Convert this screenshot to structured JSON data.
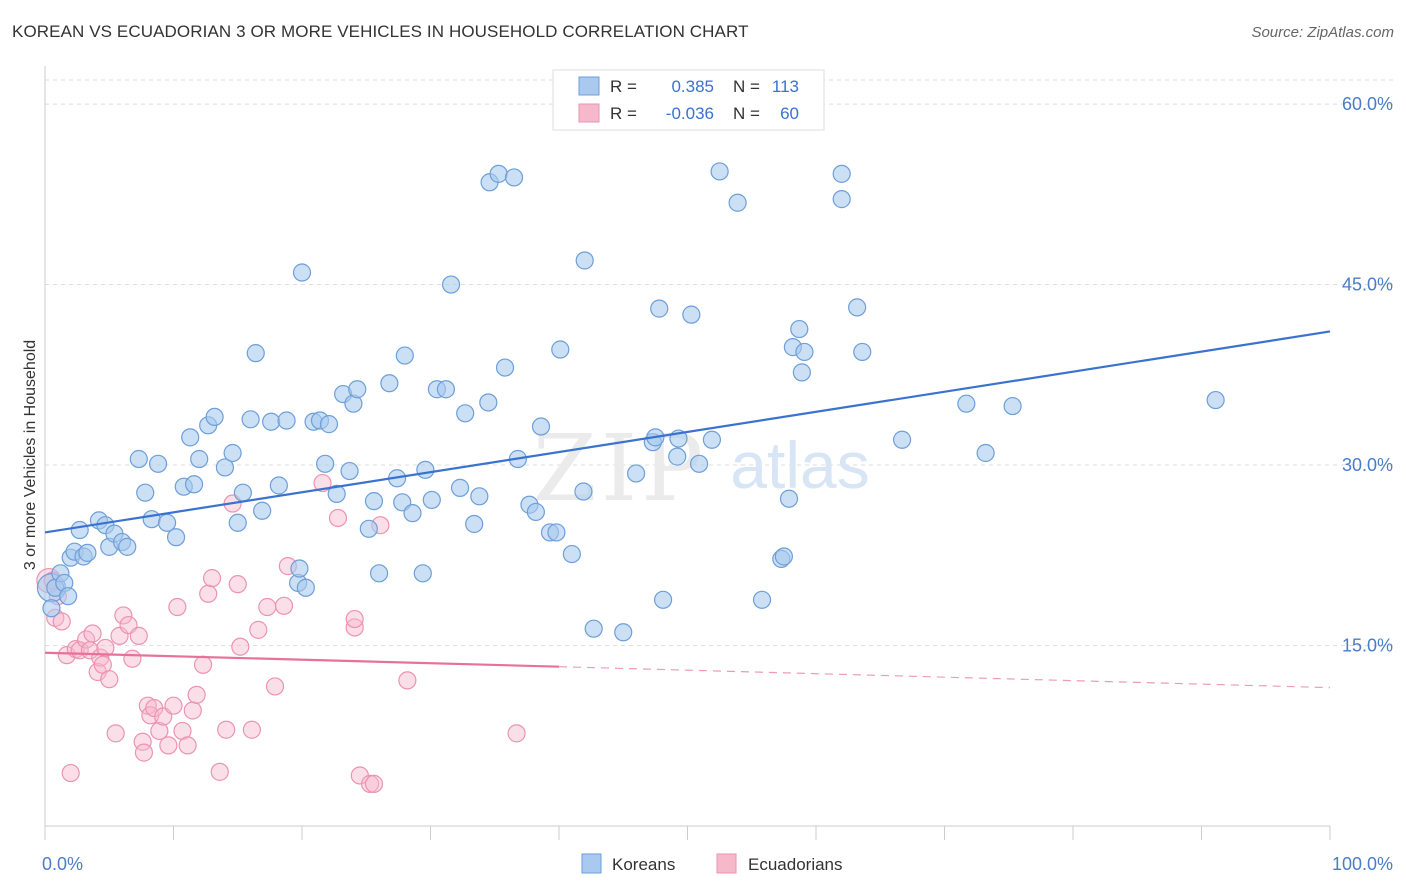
{
  "header": {
    "title": "KOREAN VS ECUADORIAN 3 OR MORE VEHICLES IN HOUSEHOLD CORRELATION CHART",
    "source": "Source: ZipAtlas.com"
  },
  "watermark": {
    "zip": "ZIP",
    "atlas": "atlas"
  },
  "colors": {
    "koreans_fill": "#a9c9ee",
    "koreans_stroke": "#6d9fd8",
    "koreans_line": "#3a72cf",
    "ecuadorians_fill": "#f6b9cb",
    "ecuadorians_stroke": "#ec93b0",
    "ecuadorians_line": "#e8719a",
    "tick_label": "#4a7cc9",
    "grid": "#dddddd"
  },
  "legend_top": {
    "rows": [
      {
        "r_label": "R =",
        "r_value": "0.385",
        "n_label": "N =",
        "n_value": "113"
      },
      {
        "r_label": "R =",
        "r_value": "-0.036",
        "n_label": "N =",
        "n_value": "60"
      }
    ]
  },
  "chart_data": {
    "type": "scatter",
    "title": "KOREAN VS ECUADORIAN 3 OR MORE VEHICLES IN HOUSEHOLD CORRELATION CHART",
    "xlabel": "",
    "ylabel": "3 or more Vehicles in Household",
    "xlim": [
      0,
      100
    ],
    "ylim": [
      0,
      60
    ],
    "x_ticks": [
      "0.0%",
      "100.0%"
    ],
    "y_ticks": [
      {
        "value": 15,
        "label": "15.0%"
      },
      {
        "value": 30,
        "label": "30.0%"
      },
      {
        "value": 45,
        "label": "45.0%"
      },
      {
        "value": 60,
        "label": "60.0%"
      }
    ],
    "grid": true,
    "legend_position": "bottom-center",
    "series": [
      {
        "name": "Koreans",
        "r": 0.385,
        "n": 113,
        "trend": {
          "x0": 0,
          "y0": 24.4,
          "x1": 100,
          "y1": 41.1,
          "dashed_from": null
        },
        "points": [
          [
            0.5,
            18.1
          ],
          [
            0.8,
            19.8
          ],
          [
            1.2,
            21.0
          ],
          [
            1.5,
            20.2
          ],
          [
            1.8,
            19.1
          ],
          [
            2.0,
            22.3
          ],
          [
            2.3,
            22.8
          ],
          [
            2.7,
            24.6
          ],
          [
            3.0,
            22.4
          ],
          [
            3.3,
            22.7
          ],
          [
            4.2,
            25.4
          ],
          [
            4.7,
            25.0
          ],
          [
            5.0,
            23.2
          ],
          [
            5.4,
            24.3
          ],
          [
            6.0,
            23.6
          ],
          [
            6.4,
            23.2
          ],
          [
            7.3,
            30.5
          ],
          [
            7.8,
            27.7
          ],
          [
            8.3,
            25.5
          ],
          [
            8.8,
            30.1
          ],
          [
            9.5,
            25.2
          ],
          [
            10.2,
            24.0
          ],
          [
            10.8,
            28.2
          ],
          [
            11.3,
            32.3
          ],
          [
            11.6,
            28.4
          ],
          [
            12.0,
            30.5
          ],
          [
            12.7,
            33.3
          ],
          [
            13.2,
            34.0
          ],
          [
            14.0,
            29.8
          ],
          [
            14.6,
            31.0
          ],
          [
            15.0,
            25.2
          ],
          [
            15.4,
            27.7
          ],
          [
            16.0,
            33.8
          ],
          [
            16.4,
            39.3
          ],
          [
            16.9,
            26.2
          ],
          [
            17.6,
            33.6
          ],
          [
            18.2,
            28.3
          ],
          [
            18.8,
            33.7
          ],
          [
            19.7,
            20.2
          ],
          [
            19.8,
            21.4
          ],
          [
            20.0,
            46.0
          ],
          [
            20.3,
            19.8
          ],
          [
            20.9,
            33.6
          ],
          [
            21.4,
            33.7
          ],
          [
            21.8,
            30.1
          ],
          [
            22.1,
            33.4
          ],
          [
            22.7,
            27.6
          ],
          [
            23.2,
            35.9
          ],
          [
            23.7,
            29.5
          ],
          [
            24.0,
            35.1
          ],
          [
            24.3,
            36.3
          ],
          [
            25.2,
            24.7
          ],
          [
            25.6,
            27.0
          ],
          [
            26.0,
            21.0
          ],
          [
            26.8,
            36.8
          ],
          [
            27.4,
            28.9
          ],
          [
            27.8,
            26.9
          ],
          [
            28.0,
            39.1
          ],
          [
            28.6,
            26.0
          ],
          [
            29.4,
            21.0
          ],
          [
            29.6,
            29.6
          ],
          [
            30.1,
            27.1
          ],
          [
            30.5,
            36.3
          ],
          [
            31.2,
            36.3
          ],
          [
            31.6,
            45.0
          ],
          [
            32.3,
            28.1
          ],
          [
            32.7,
            34.3
          ],
          [
            33.4,
            25.1
          ],
          [
            33.8,
            27.4
          ],
          [
            34.5,
            35.2
          ],
          [
            34.6,
            53.5
          ],
          [
            35.3,
            54.2
          ],
          [
            35.8,
            38.1
          ],
          [
            36.5,
            53.9
          ],
          [
            36.8,
            30.5
          ],
          [
            37.7,
            26.7
          ],
          [
            38.2,
            26.1
          ],
          [
            38.6,
            33.2
          ],
          [
            39.3,
            24.4
          ],
          [
            39.8,
            24.4
          ],
          [
            40.1,
            39.6
          ],
          [
            41.0,
            22.6
          ],
          [
            41.9,
            27.8
          ],
          [
            42.0,
            47.0
          ],
          [
            42.7,
            16.4
          ],
          [
            45.0,
            16.1
          ],
          [
            46.0,
            29.3
          ],
          [
            47.3,
            31.9
          ],
          [
            47.5,
            32.3
          ],
          [
            47.8,
            43.0
          ],
          [
            48.1,
            18.8
          ],
          [
            49.2,
            30.7
          ],
          [
            49.3,
            32.2
          ],
          [
            50.3,
            42.5
          ],
          [
            50.9,
            30.1
          ],
          [
            51.9,
            32.1
          ],
          [
            52.5,
            54.4
          ],
          [
            53.9,
            51.8
          ],
          [
            55.8,
            18.8
          ],
          [
            57.3,
            22.2
          ],
          [
            57.5,
            22.4
          ],
          [
            57.9,
            27.2
          ],
          [
            58.2,
            39.8
          ],
          [
            58.7,
            41.3
          ],
          [
            58.9,
            37.7
          ],
          [
            59.1,
            39.4
          ],
          [
            62.0,
            52.1
          ],
          [
            62.0,
            54.2
          ],
          [
            63.2,
            43.1
          ],
          [
            63.6,
            39.4
          ],
          [
            66.7,
            32.1
          ],
          [
            71.7,
            35.1
          ],
          [
            73.2,
            31.0
          ],
          [
            75.3,
            34.9
          ],
          [
            91.1,
            35.4
          ]
        ],
        "big_points": [
          [
            0.5,
            19.8,
            14
          ]
        ]
      },
      {
        "name": "Ecuadorians",
        "r": -0.036,
        "n": 60,
        "trend": {
          "x0": 0,
          "y0": 14.4,
          "x1": 100,
          "y1": 11.5,
          "dashed_from": 40
        },
        "points": [
          [
            0.6,
            20.4
          ],
          [
            0.8,
            17.3
          ],
          [
            1.0,
            19.1
          ],
          [
            1.3,
            17.0
          ],
          [
            1.7,
            14.2
          ],
          [
            2.0,
            4.4
          ],
          [
            2.4,
            14.7
          ],
          [
            2.7,
            14.6
          ],
          [
            3.2,
            15.5
          ],
          [
            3.5,
            14.6
          ],
          [
            3.7,
            16.0
          ],
          [
            4.1,
            12.8
          ],
          [
            4.3,
            14.0
          ],
          [
            4.5,
            13.4
          ],
          [
            4.7,
            14.8
          ],
          [
            5.0,
            12.2
          ],
          [
            5.5,
            7.7
          ],
          [
            5.8,
            15.8
          ],
          [
            6.1,
            17.5
          ],
          [
            6.5,
            16.7
          ],
          [
            6.8,
            13.9
          ],
          [
            7.3,
            15.8
          ],
          [
            7.6,
            7.0
          ],
          [
            7.7,
            6.1
          ],
          [
            8.0,
            10.0
          ],
          [
            8.2,
            9.2
          ],
          [
            8.5,
            9.8
          ],
          [
            8.9,
            7.9
          ],
          [
            9.2,
            9.1
          ],
          [
            9.6,
            6.7
          ],
          [
            10.0,
            10.0
          ],
          [
            10.3,
            18.2
          ],
          [
            10.7,
            7.9
          ],
          [
            11.1,
            6.7
          ],
          [
            11.5,
            9.6
          ],
          [
            11.8,
            10.9
          ],
          [
            12.3,
            13.4
          ],
          [
            12.7,
            19.3
          ],
          [
            13.0,
            20.6
          ],
          [
            13.6,
            4.5
          ],
          [
            14.1,
            8.0
          ],
          [
            14.6,
            26.8
          ],
          [
            15.0,
            20.1
          ],
          [
            15.2,
            14.9
          ],
          [
            16.1,
            8.0
          ],
          [
            16.6,
            16.3
          ],
          [
            17.3,
            18.2
          ],
          [
            17.9,
            11.6
          ],
          [
            18.6,
            18.3
          ],
          [
            18.9,
            21.6
          ],
          [
            21.6,
            28.5
          ],
          [
            22.8,
            25.6
          ],
          [
            24.1,
            16.5
          ],
          [
            24.1,
            17.2
          ],
          [
            24.5,
            4.2
          ],
          [
            25.3,
            3.5
          ],
          [
            25.6,
            3.5
          ],
          [
            26.1,
            25.0
          ],
          [
            28.2,
            12.1
          ],
          [
            36.7,
            7.7
          ]
        ],
        "big_points": [
          [
            0.3,
            20.4,
            12
          ]
        ]
      }
    ]
  },
  "legend_bottom": {
    "items": [
      {
        "label": "Koreans"
      },
      {
        "label": "Ecuadorians"
      }
    ]
  }
}
